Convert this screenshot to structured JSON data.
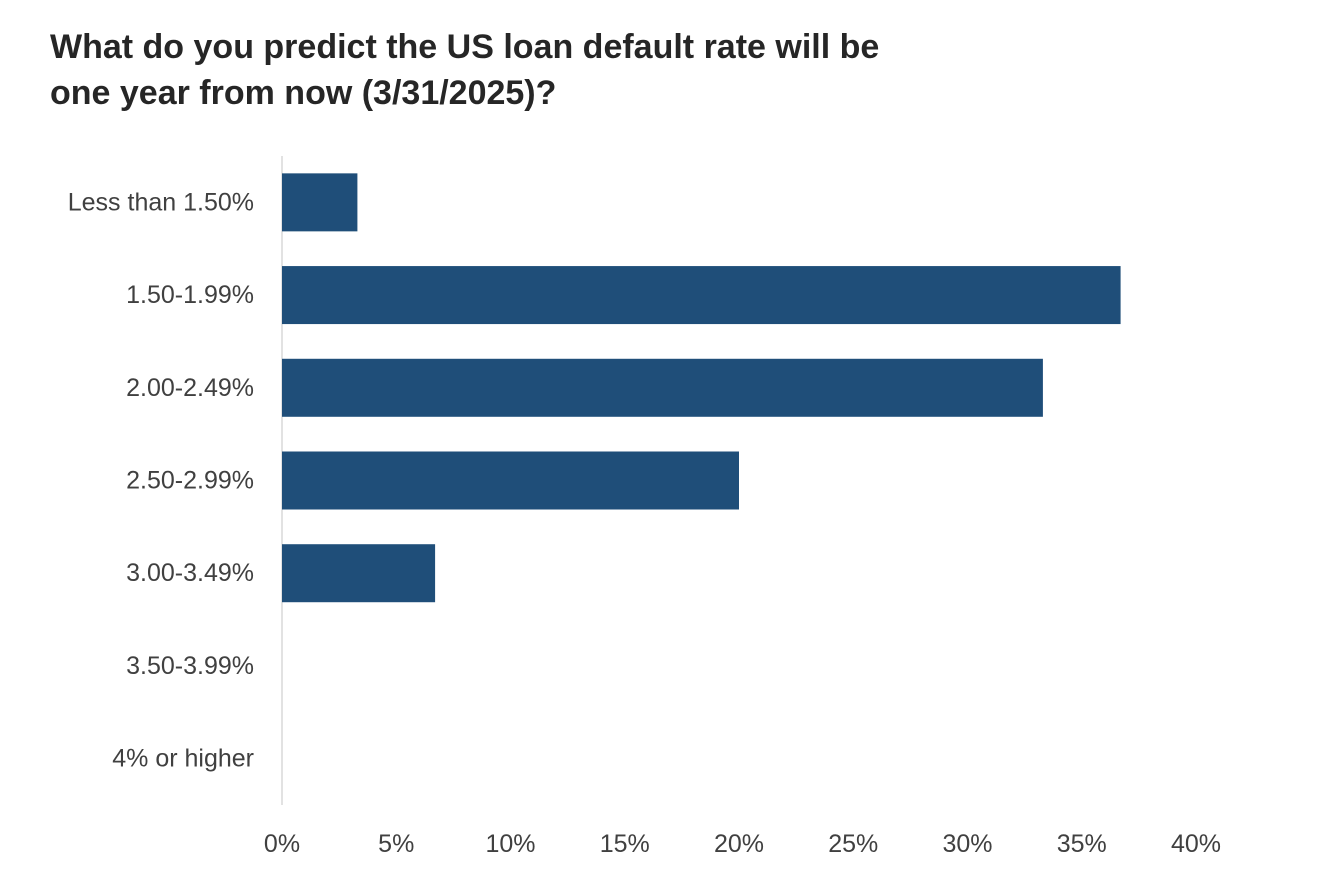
{
  "chart_data": {
    "type": "bar",
    "orientation": "horizontal",
    "title_lines": [
      "What do you predict the US loan default rate will be",
      "one year from now (3/31/2025)?"
    ],
    "categories": [
      "Less than 1.50%",
      "1.50-1.99%",
      "2.00-2.49%",
      "2.50-2.99%",
      "3.00-3.49%",
      "3.50-3.99%",
      "4% or higher"
    ],
    "values": [
      3.3,
      36.7,
      33.3,
      20.0,
      6.7,
      0,
      0
    ],
    "xlim": [
      0,
      40
    ],
    "x_ticks": [
      0,
      5,
      10,
      15,
      20,
      25,
      30,
      35,
      40
    ],
    "x_tick_labels": [
      "0%",
      "5%",
      "10%",
      "15%",
      "20%",
      "25%",
      "30%",
      "35%",
      "40%"
    ],
    "xlabel": "",
    "ylabel": "",
    "grid": false,
    "legend": "none",
    "bar_color": "#1f4e79",
    "axis_color": "#d9d9d9"
  }
}
